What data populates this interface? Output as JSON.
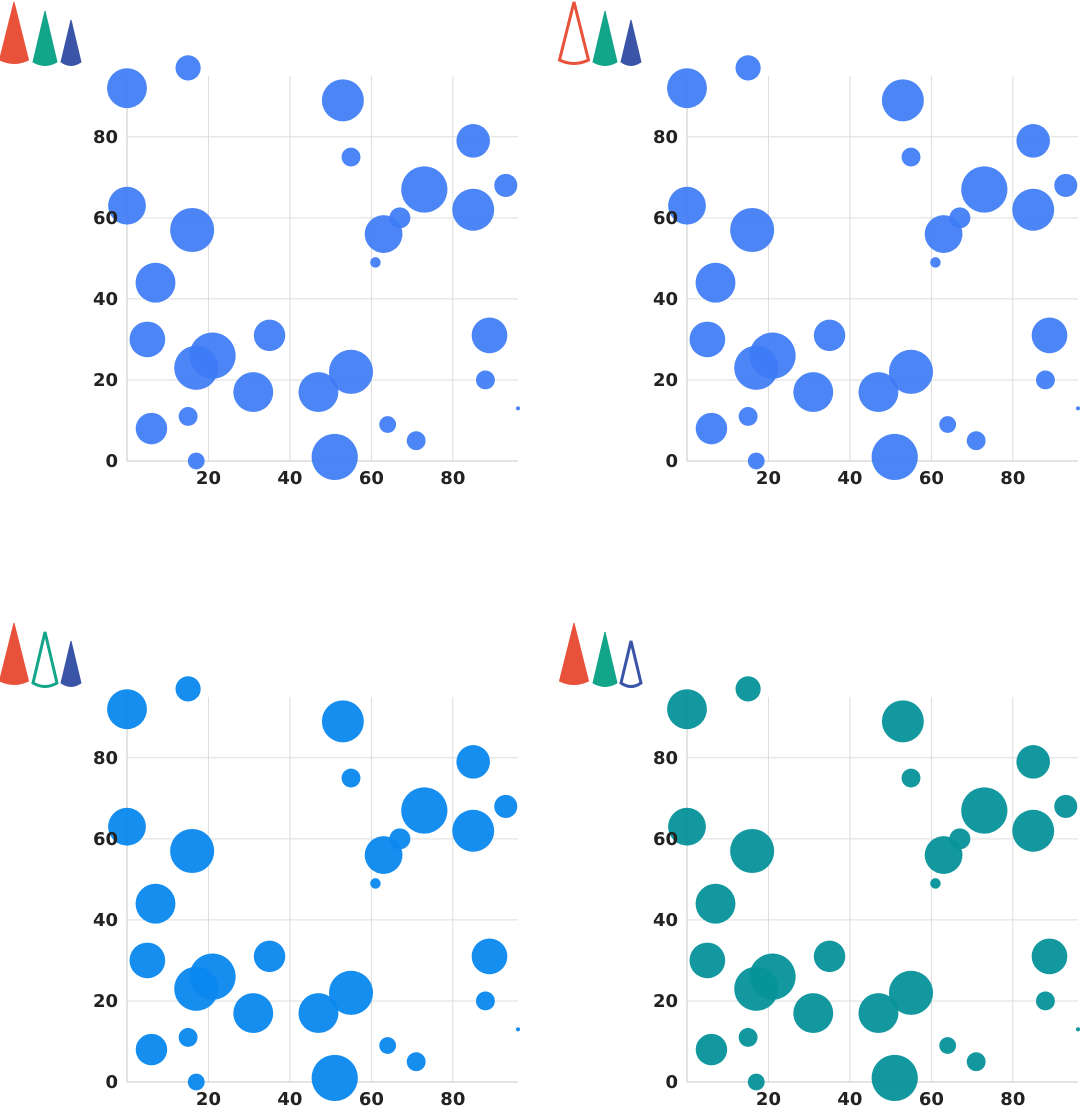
{
  "legend_icons": [
    {
      "name": "red-cone",
      "color": "#e8513a"
    },
    {
      "name": "green-cone",
      "color": "#12a58a"
    },
    {
      "name": "navy-cone",
      "color": "#3a55a8"
    }
  ],
  "chart_data": [
    {
      "type": "scatter",
      "subtype": "bubble",
      "title": "",
      "xlabel": "",
      "ylabel": "",
      "xlim": [
        0,
        96
      ],
      "ylim": [
        0,
        95
      ],
      "xticks": [
        20,
        40,
        60,
        80
      ],
      "yticks": [
        0,
        20,
        40,
        60,
        80
      ],
      "grid": true,
      "legend": {
        "position": "top-left",
        "hollow": "none"
      },
      "color": "#3d7bf5",
      "opacity": 0.92,
      "points": [
        {
          "x": 0,
          "y": 92,
          "size": 9.5
        },
        {
          "x": 15,
          "y": 97,
          "size": 6
        },
        {
          "x": 53,
          "y": 89,
          "size": 10
        },
        {
          "x": 85,
          "y": 79,
          "size": 8
        },
        {
          "x": 55,
          "y": 75,
          "size": 4.5
        },
        {
          "x": 93,
          "y": 68,
          "size": 5.5
        },
        {
          "x": 73,
          "y": 67,
          "size": 11
        },
        {
          "x": 0,
          "y": 63,
          "size": 9
        },
        {
          "x": 67,
          "y": 60,
          "size": 5
        },
        {
          "x": 85,
          "y": 62,
          "size": 10
        },
        {
          "x": 16,
          "y": 57,
          "size": 10.5
        },
        {
          "x": 63,
          "y": 56,
          "size": 9
        },
        {
          "x": 61,
          "y": 49,
          "size": 2.5
        },
        {
          "x": 7,
          "y": 44,
          "size": 9.5
        },
        {
          "x": 5,
          "y": 30,
          "size": 8.5
        },
        {
          "x": 35,
          "y": 31,
          "size": 7.5
        },
        {
          "x": 89,
          "y": 31,
          "size": 8.5
        },
        {
          "x": 21,
          "y": 26,
          "size": 11
        },
        {
          "x": 17,
          "y": 23,
          "size": 10.5
        },
        {
          "x": 55,
          "y": 22,
          "size": 10.5
        },
        {
          "x": 88,
          "y": 20,
          "size": 4.5
        },
        {
          "x": 31,
          "y": 17,
          "size": 9.5
        },
        {
          "x": 47,
          "y": 17,
          "size": 9.5
        },
        {
          "x": 15,
          "y": 11,
          "size": 4.5
        },
        {
          "x": 96,
          "y": 13,
          "size": 1
        },
        {
          "x": 6,
          "y": 8,
          "size": 7.5
        },
        {
          "x": 64,
          "y": 9,
          "size": 4
        },
        {
          "x": 71,
          "y": 5,
          "size": 4.5
        },
        {
          "x": 51,
          "y": 1,
          "size": 11
        },
        {
          "x": 17,
          "y": 0,
          "size": 4
        }
      ]
    },
    {
      "type": "scatter",
      "subtype": "bubble",
      "title": "",
      "xlabel": "",
      "ylabel": "",
      "xlim": [
        0,
        96
      ],
      "ylim": [
        0,
        95
      ],
      "xticks": [
        20,
        40,
        60,
        80
      ],
      "yticks": [
        0,
        20,
        40,
        60,
        80
      ],
      "grid": true,
      "legend": {
        "position": "top-left",
        "hollow": "red-cone"
      },
      "color": "#3d7bf5",
      "opacity": 0.92,
      "points": [
        {
          "x": 0,
          "y": 92,
          "size": 9.5
        },
        {
          "x": 15,
          "y": 97,
          "size": 6
        },
        {
          "x": 53,
          "y": 89,
          "size": 10
        },
        {
          "x": 85,
          "y": 79,
          "size": 8
        },
        {
          "x": 55,
          "y": 75,
          "size": 4.5
        },
        {
          "x": 93,
          "y": 68,
          "size": 5.5
        },
        {
          "x": 73,
          "y": 67,
          "size": 11
        },
        {
          "x": 0,
          "y": 63,
          "size": 9
        },
        {
          "x": 67,
          "y": 60,
          "size": 5
        },
        {
          "x": 85,
          "y": 62,
          "size": 10
        },
        {
          "x": 16,
          "y": 57,
          "size": 10.5
        },
        {
          "x": 63,
          "y": 56,
          "size": 9
        },
        {
          "x": 61,
          "y": 49,
          "size": 2.5
        },
        {
          "x": 7,
          "y": 44,
          "size": 9.5
        },
        {
          "x": 5,
          "y": 30,
          "size": 8.5
        },
        {
          "x": 35,
          "y": 31,
          "size": 7.5
        },
        {
          "x": 89,
          "y": 31,
          "size": 8.5
        },
        {
          "x": 21,
          "y": 26,
          "size": 11
        },
        {
          "x": 17,
          "y": 23,
          "size": 10.5
        },
        {
          "x": 55,
          "y": 22,
          "size": 10.5
        },
        {
          "x": 88,
          "y": 20,
          "size": 4.5
        },
        {
          "x": 31,
          "y": 17,
          "size": 9.5
        },
        {
          "x": 47,
          "y": 17,
          "size": 9.5
        },
        {
          "x": 15,
          "y": 11,
          "size": 4.5
        },
        {
          "x": 96,
          "y": 13,
          "size": 1
        },
        {
          "x": 6,
          "y": 8,
          "size": 7.5
        },
        {
          "x": 64,
          "y": 9,
          "size": 4
        },
        {
          "x": 71,
          "y": 5,
          "size": 4.5
        },
        {
          "x": 51,
          "y": 1,
          "size": 11
        },
        {
          "x": 17,
          "y": 0,
          "size": 4
        }
      ]
    },
    {
      "type": "scatter",
      "subtype": "bubble",
      "title": "",
      "xlabel": "",
      "ylabel": "",
      "xlim": [
        0,
        96
      ],
      "ylim": [
        0,
        95
      ],
      "xticks": [
        20,
        40,
        60,
        80
      ],
      "yticks": [
        0,
        20,
        40,
        60,
        80
      ],
      "grid": true,
      "legend": {
        "position": "top-left",
        "hollow": "green-cone"
      },
      "color": "#0a88ee",
      "opacity": 0.95,
      "points": [
        {
          "x": 0,
          "y": 92,
          "size": 9.5
        },
        {
          "x": 15,
          "y": 97,
          "size": 6
        },
        {
          "x": 53,
          "y": 89,
          "size": 10
        },
        {
          "x": 85,
          "y": 79,
          "size": 8
        },
        {
          "x": 55,
          "y": 75,
          "size": 4.5
        },
        {
          "x": 93,
          "y": 68,
          "size": 5.5
        },
        {
          "x": 73,
          "y": 67,
          "size": 11
        },
        {
          "x": 0,
          "y": 63,
          "size": 9
        },
        {
          "x": 67,
          "y": 60,
          "size": 5
        },
        {
          "x": 85,
          "y": 62,
          "size": 10
        },
        {
          "x": 16,
          "y": 57,
          "size": 10.5
        },
        {
          "x": 63,
          "y": 56,
          "size": 9
        },
        {
          "x": 61,
          "y": 49,
          "size": 2.5
        },
        {
          "x": 7,
          "y": 44,
          "size": 9.5
        },
        {
          "x": 5,
          "y": 30,
          "size": 8.5
        },
        {
          "x": 35,
          "y": 31,
          "size": 7.5
        },
        {
          "x": 89,
          "y": 31,
          "size": 8.5
        },
        {
          "x": 21,
          "y": 26,
          "size": 11
        },
        {
          "x": 17,
          "y": 23,
          "size": 10.5
        },
        {
          "x": 55,
          "y": 22,
          "size": 10.5
        },
        {
          "x": 88,
          "y": 20,
          "size": 4.5
        },
        {
          "x": 31,
          "y": 17,
          "size": 9.5
        },
        {
          "x": 47,
          "y": 17,
          "size": 9.5
        },
        {
          "x": 15,
          "y": 11,
          "size": 4.5
        },
        {
          "x": 96,
          "y": 13,
          "size": 1
        },
        {
          "x": 6,
          "y": 8,
          "size": 7.5
        },
        {
          "x": 64,
          "y": 9,
          "size": 4
        },
        {
          "x": 71,
          "y": 5,
          "size": 4.5
        },
        {
          "x": 51,
          "y": 1,
          "size": 11
        },
        {
          "x": 17,
          "y": 0,
          "size": 4
        }
      ]
    },
    {
      "type": "scatter",
      "subtype": "bubble",
      "title": "",
      "xlabel": "",
      "ylabel": "",
      "xlim": [
        0,
        96
      ],
      "ylim": [
        0,
        95
      ],
      "xticks": [
        20,
        40,
        60,
        80
      ],
      "yticks": [
        0,
        20,
        40,
        60,
        80
      ],
      "grid": true,
      "legend": {
        "position": "top-left",
        "hollow": "navy-cone"
      },
      "color": "#06929a",
      "opacity": 0.95,
      "points": [
        {
          "x": 0,
          "y": 92,
          "size": 9.5
        },
        {
          "x": 15,
          "y": 97,
          "size": 6
        },
        {
          "x": 53,
          "y": 89,
          "size": 10
        },
        {
          "x": 85,
          "y": 79,
          "size": 8
        },
        {
          "x": 55,
          "y": 75,
          "size": 4.5
        },
        {
          "x": 93,
          "y": 68,
          "size": 5.5
        },
        {
          "x": 73,
          "y": 67,
          "size": 11
        },
        {
          "x": 0,
          "y": 63,
          "size": 9
        },
        {
          "x": 67,
          "y": 60,
          "size": 5
        },
        {
          "x": 85,
          "y": 62,
          "size": 10
        },
        {
          "x": 16,
          "y": 57,
          "size": 10.5
        },
        {
          "x": 63,
          "y": 56,
          "size": 9
        },
        {
          "x": 61,
          "y": 49,
          "size": 2.5
        },
        {
          "x": 7,
          "y": 44,
          "size": 9.5
        },
        {
          "x": 5,
          "y": 30,
          "size": 8.5
        },
        {
          "x": 35,
          "y": 31,
          "size": 7.5
        },
        {
          "x": 89,
          "y": 31,
          "size": 8.5
        },
        {
          "x": 21,
          "y": 26,
          "size": 11
        },
        {
          "x": 17,
          "y": 23,
          "size": 10.5
        },
        {
          "x": 55,
          "y": 22,
          "size": 10.5
        },
        {
          "x": 88,
          "y": 20,
          "size": 4.5
        },
        {
          "x": 31,
          "y": 17,
          "size": 9.5
        },
        {
          "x": 47,
          "y": 17,
          "size": 9.5
        },
        {
          "x": 15,
          "y": 11,
          "size": 4.5
        },
        {
          "x": 96,
          "y": 13,
          "size": 1
        },
        {
          "x": 6,
          "y": 8,
          "size": 7.5
        },
        {
          "x": 64,
          "y": 9,
          "size": 4
        },
        {
          "x": 71,
          "y": 5,
          "size": 4.5
        },
        {
          "x": 51,
          "y": 1,
          "size": 11
        },
        {
          "x": 17,
          "y": 0,
          "size": 4
        }
      ]
    }
  ]
}
